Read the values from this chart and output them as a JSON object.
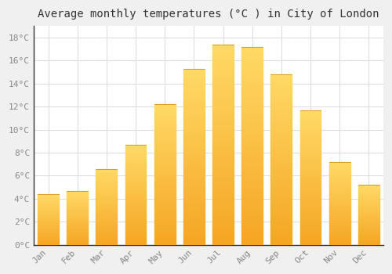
{
  "months": [
    "Jan",
    "Feb",
    "Mar",
    "Apr",
    "May",
    "Jun",
    "Jul",
    "Aug",
    "Sep",
    "Oct",
    "Nov",
    "Dec"
  ],
  "temperatures": [
    4.4,
    4.7,
    6.6,
    8.7,
    12.2,
    15.3,
    17.4,
    17.2,
    14.8,
    11.7,
    7.2,
    5.2
  ],
  "bar_color_bottom": "#F5A623",
  "bar_color_top": "#FFD966",
  "title": "Average monthly temperatures (°C ) in City of London",
  "ylim": [
    0,
    19
  ],
  "yticks": [
    0,
    2,
    4,
    6,
    8,
    10,
    12,
    14,
    16,
    18
  ],
  "plot_bg_color": "#ffffff",
  "fig_bg_color": "#f0f0f0",
  "grid_color": "#dddddd",
  "spine_color": "#333333",
  "title_fontsize": 10,
  "tick_fontsize": 8,
  "font_family": "monospace",
  "tick_color": "#888888"
}
